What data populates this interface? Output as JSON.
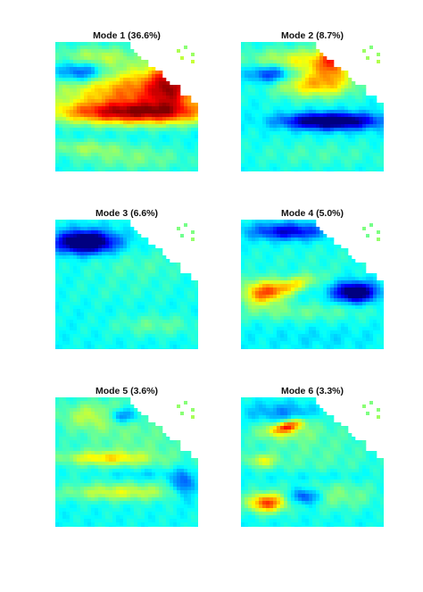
{
  "chart_data": [
    {
      "type": "heatmap",
      "title": "Mode 1 (36.6%)",
      "colormap": "jet",
      "land_color": "#ffffff",
      "colors": {
        "background": "#00e5ff",
        "low": "#0000a0",
        "mid": "#ffff00",
        "high": "#800000"
      },
      "features": [
        {
          "cx": 0.58,
          "cy": 0.3,
          "rx": 0.62,
          "ry": 0.11,
          "v": 0.45,
          "rot": 0
        },
        {
          "cx": 0.3,
          "cy": 0.12,
          "rx": 0.3,
          "ry": 0.09,
          "v": 0.3,
          "rot": 0
        },
        {
          "cx": 0.18,
          "cy": 0.23,
          "rx": 0.18,
          "ry": 0.08,
          "v": -0.5,
          "rot": 0
        },
        {
          "cx": 0.55,
          "cy": 0.53,
          "rx": 0.55,
          "ry": 0.09,
          "v": 1.0,
          "rot": 0
        },
        {
          "cx": 0.6,
          "cy": 0.4,
          "rx": 0.5,
          "ry": 0.08,
          "v": 0.35,
          "rot": 0
        },
        {
          "cx": 0.8,
          "cy": 0.3,
          "rx": 0.15,
          "ry": 0.2,
          "v": 0.5,
          "rot": 0
        },
        {
          "cx": 0.2,
          "cy": 0.8,
          "rx": 0.25,
          "ry": 0.06,
          "v": 0.2,
          "rot": 0
        },
        {
          "cx": 0.55,
          "cy": 0.88,
          "rx": 0.4,
          "ry": 0.1,
          "v": 0.18,
          "rot": 0
        }
      ]
    },
    {
      "type": "heatmap",
      "title": "Mode 2 (8.7%)",
      "colormap": "jet",
      "land_color": "#ffffff",
      "colors": {
        "background": "#00e5ff",
        "low": "#0000a0",
        "mid": "#ffff00",
        "high": "#800000"
      },
      "features": [
        {
          "cx": 0.45,
          "cy": 0.15,
          "rx": 0.4,
          "ry": 0.1,
          "v": 0.4,
          "rot": 0
        },
        {
          "cx": 0.22,
          "cy": 0.24,
          "rx": 0.17,
          "ry": 0.07,
          "v": -0.5,
          "rot": 0
        },
        {
          "cx": 0.52,
          "cy": 0.32,
          "rx": 0.28,
          "ry": 0.1,
          "v": 0.5,
          "rot": 0
        },
        {
          "cx": 0.64,
          "cy": 0.13,
          "rx": 0.1,
          "ry": 0.15,
          "v": 0.45,
          "rot": 0
        },
        {
          "cx": 0.62,
          "cy": 0.6,
          "rx": 0.33,
          "ry": 0.06,
          "v": -0.85,
          "rot": 0
        },
        {
          "cx": 0.3,
          "cy": 0.6,
          "rx": 0.3,
          "ry": 0.09,
          "v": 0.05,
          "rot": 0
        },
        {
          "cx": 0.55,
          "cy": 0.85,
          "rx": 0.5,
          "ry": 0.1,
          "v": 0.1,
          "rot": 0
        }
      ]
    },
    {
      "type": "heatmap",
      "title": "Mode 3 (6.6%)",
      "colormap": "jet",
      "land_color": "#ffffff",
      "colors": {
        "background": "#00e5ff",
        "low": "#0000a0",
        "mid": "#ffff00",
        "high": "#800000"
      },
      "features": [
        {
          "cx": 0.21,
          "cy": 0.17,
          "rx": 0.2,
          "ry": 0.08,
          "v": -0.95,
          "rot": 0
        },
        {
          "cx": 0.6,
          "cy": 0.35,
          "rx": 0.4,
          "ry": 0.12,
          "v": 0.1,
          "rot": 0
        },
        {
          "cx": 0.5,
          "cy": 0.55,
          "rx": 0.45,
          "ry": 0.1,
          "v": 0.05,
          "rot": 0
        },
        {
          "cx": 0.7,
          "cy": 0.8,
          "rx": 0.3,
          "ry": 0.08,
          "v": 0.15,
          "rot": 0
        },
        {
          "cx": 0.25,
          "cy": 0.65,
          "rx": 0.2,
          "ry": 0.15,
          "v": 0.0,
          "rot": 0
        }
      ]
    },
    {
      "type": "heatmap",
      "title": "Mode 4 (5.0%)",
      "colormap": "jet",
      "land_color": "#ffffff",
      "colors": {
        "background": "#00e5ff",
        "low": "#0000a0",
        "mid": "#ffff00",
        "high": "#800000"
      },
      "features": [
        {
          "cx": 0.33,
          "cy": 0.09,
          "rx": 0.25,
          "ry": 0.06,
          "v": -0.5,
          "rot": 0
        },
        {
          "cx": 0.5,
          "cy": 0.3,
          "rx": 0.5,
          "ry": 0.12,
          "v": 0.05,
          "rot": 0
        },
        {
          "cx": 0.15,
          "cy": 0.55,
          "rx": 0.15,
          "ry": 0.1,
          "v": 0.55,
          "rot": 0
        },
        {
          "cx": 0.35,
          "cy": 0.5,
          "rx": 0.2,
          "ry": 0.06,
          "v": 0.4,
          "rot": -0.3
        },
        {
          "cx": 0.8,
          "cy": 0.55,
          "rx": 0.14,
          "ry": 0.07,
          "v": -0.85,
          "rot": 0
        },
        {
          "cx": 0.4,
          "cy": 0.7,
          "rx": 0.5,
          "ry": 0.07,
          "v": 0.15,
          "rot": 0
        },
        {
          "cx": 0.55,
          "cy": 0.9,
          "rx": 0.4,
          "ry": 0.08,
          "v": -0.05,
          "rot": 0
        }
      ]
    },
    {
      "type": "heatmap",
      "title": "Mode 5 (3.6%)",
      "colormap": "jet",
      "land_color": "#ffffff",
      "colors": {
        "background": "#00e5ff",
        "low": "#0000a0",
        "mid": "#ffff00",
        "high": "#800000"
      },
      "features": [
        {
          "cx": 0.55,
          "cy": 0.35,
          "rx": 0.5,
          "ry": 0.35,
          "v": 0.15,
          "rot": 0
        },
        {
          "cx": 0.28,
          "cy": 0.14,
          "rx": 0.25,
          "ry": 0.1,
          "v": 0.25,
          "rot": 0
        },
        {
          "cx": 0.47,
          "cy": 0.14,
          "rx": 0.12,
          "ry": 0.06,
          "v": -0.4,
          "rot": 0
        },
        {
          "cx": 0.35,
          "cy": 0.46,
          "rx": 0.3,
          "ry": 0.05,
          "v": 0.35,
          "rot": 0
        },
        {
          "cx": 0.45,
          "cy": 0.72,
          "rx": 0.4,
          "ry": 0.06,
          "v": 0.3,
          "rot": 0
        },
        {
          "cx": 0.9,
          "cy": 0.66,
          "rx": 0.08,
          "ry": 0.1,
          "v": -0.35,
          "rot": 0
        },
        {
          "cx": 0.6,
          "cy": 0.58,
          "rx": 0.3,
          "ry": 0.05,
          "v": -0.15,
          "rot": 0
        }
      ]
    },
    {
      "type": "heatmap",
      "title": "Mode 6 (3.3%)",
      "colormap": "jet",
      "land_color": "#ffffff",
      "colors": {
        "background": "#00e5ff",
        "low": "#0000a0",
        "mid": "#ffff00",
        "high": "#800000"
      },
      "features": [
        {
          "cx": 0.5,
          "cy": 0.4,
          "rx": 0.5,
          "ry": 0.35,
          "v": 0.12,
          "rot": 0
        },
        {
          "cx": 0.3,
          "cy": 0.12,
          "rx": 0.25,
          "ry": 0.08,
          "v": -0.25,
          "rot": 0
        },
        {
          "cx": 0.3,
          "cy": 0.25,
          "rx": 0.2,
          "ry": 0.08,
          "v": 0.2,
          "rot": 0
        },
        {
          "cx": 0.33,
          "cy": 0.22,
          "rx": 0.12,
          "ry": 0.04,
          "v": 0.55,
          "rot": -0.3
        },
        {
          "cx": 0.15,
          "cy": 0.48,
          "rx": 0.1,
          "ry": 0.05,
          "v": 0.3,
          "rot": 0
        },
        {
          "cx": 0.18,
          "cy": 0.8,
          "rx": 0.13,
          "ry": 0.07,
          "v": 0.7,
          "rot": 0
        },
        {
          "cx": 0.45,
          "cy": 0.75,
          "rx": 0.1,
          "ry": 0.06,
          "v": -0.4,
          "rot": 0
        },
        {
          "cx": 0.7,
          "cy": 0.75,
          "rx": 0.25,
          "ry": 0.1,
          "v": 0.15,
          "rot": 0
        },
        {
          "cx": 0.5,
          "cy": 0.6,
          "rx": 0.4,
          "ry": 0.05,
          "v": -0.1,
          "rot": 0
        }
      ]
    }
  ]
}
